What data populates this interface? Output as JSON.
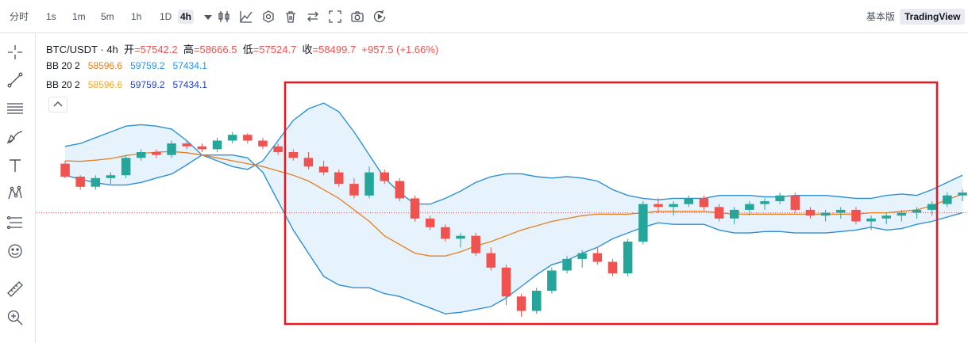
{
  "toolbar": {
    "timeline_label": "分时",
    "intervals": [
      "1s",
      "1m",
      "5m",
      "1h",
      "1D",
      "4h"
    ],
    "active_interval": "4h",
    "basic_label": "基本版",
    "tradingview_label": "TradingView"
  },
  "legend": {
    "symbol": "BTC/USDT · 4h",
    "open_label": "开",
    "open": "=57542.2",
    "high_label": "高",
    "high": "=58666.5",
    "low_label": "低",
    "low": "=57524.7",
    "close_label": "收",
    "close": "=58499.7",
    "change": "+957.5 (+1.66%)",
    "bb1": {
      "name": "BB 20 2",
      "middle": "58596.6",
      "upper": "59759.2",
      "lower": "57434.1"
    },
    "bb2": {
      "name": "BB 20 2",
      "middle": "58596.6",
      "upper": "59759.2",
      "lower": "57434.1"
    }
  },
  "colors": {
    "up": "#26a69a",
    "down": "#ef5350",
    "band_line": "#2f8fd4",
    "band_fill": "#ddeefb",
    "middle_line": "#e67e22",
    "highlight": "#e8161f"
  },
  "chart_data": {
    "type": "candlestick",
    "symbol": "BTC/USDT",
    "interval": "4h",
    "ylim": [
      53000,
      62000
    ],
    "current_price_line": 57100,
    "series": [
      {
        "name": "candles",
        "ohlc": [
          [
            58800,
            58900,
            58300,
            58350
          ],
          [
            58350,
            58400,
            57900,
            58000
          ],
          [
            58000,
            58400,
            57900,
            58300
          ],
          [
            58300,
            58500,
            58100,
            58400
          ],
          [
            58400,
            59100,
            58300,
            59000
          ],
          [
            59000,
            59300,
            58900,
            59200
          ],
          [
            59200,
            59300,
            59000,
            59100
          ],
          [
            59100,
            59600,
            59000,
            59500
          ],
          [
            59500,
            59600,
            59300,
            59400
          ],
          [
            59400,
            59500,
            59200,
            59300
          ],
          [
            59300,
            59700,
            59200,
            59600
          ],
          [
            59600,
            59900,
            59500,
            59800
          ],
          [
            59800,
            59850,
            59500,
            59600
          ],
          [
            59600,
            59700,
            59300,
            59400
          ],
          [
            59400,
            59500,
            59100,
            59200
          ],
          [
            59200,
            59300,
            58900,
            59000
          ],
          [
            59000,
            59200,
            58600,
            58700
          ],
          [
            58700,
            58900,
            58400,
            58500
          ],
          [
            58500,
            58600,
            58000,
            58100
          ],
          [
            58100,
            58300,
            57600,
            57700
          ],
          [
            57700,
            58700,
            57600,
            58500
          ],
          [
            58500,
            58600,
            58100,
            58200
          ],
          [
            58200,
            58300,
            57500,
            57600
          ],
          [
            57600,
            57700,
            56800,
            56900
          ],
          [
            56900,
            57000,
            56500,
            56600
          ],
          [
            56600,
            56700,
            56100,
            56200
          ],
          [
            56200,
            56400,
            55900,
            56300
          ],
          [
            56300,
            56400,
            55600,
            55700
          ],
          [
            55700,
            55900,
            55100,
            55200
          ],
          [
            55200,
            55300,
            53900,
            54200
          ],
          [
            54200,
            54300,
            53500,
            53700
          ],
          [
            53700,
            54500,
            53600,
            54400
          ],
          [
            54400,
            55200,
            54300,
            55100
          ],
          [
            55100,
            55600,
            55000,
            55500
          ],
          [
            55500,
            55800,
            55200,
            55700
          ],
          [
            55700,
            55900,
            55300,
            55400
          ],
          [
            55400,
            55500,
            54900,
            55000
          ],
          [
            55000,
            56200,
            54900,
            56100
          ],
          [
            56100,
            57500,
            56000,
            57400
          ],
          [
            57400,
            57600,
            57100,
            57300
          ],
          [
            57300,
            57500,
            57000,
            57400
          ],
          [
            57400,
            57700,
            57300,
            57600
          ],
          [
            57600,
            57700,
            57200,
            57300
          ],
          [
            57300,
            57400,
            56800,
            56900
          ],
          [
            56900,
            57300,
            56700,
            57200
          ],
          [
            57200,
            57500,
            57000,
            57400
          ],
          [
            57400,
            57600,
            57200,
            57500
          ],
          [
            57500,
            57800,
            57400,
            57700
          ],
          [
            57700,
            57800,
            57100,
            57200
          ],
          [
            57200,
            57300,
            56900,
            57000
          ],
          [
            57000,
            57200,
            56800,
            57100
          ],
          [
            57100,
            57300,
            56900,
            57200
          ],
          [
            57200,
            57300,
            56700,
            56800
          ],
          [
            56800,
            57000,
            56500,
            56900
          ],
          [
            56900,
            57100,
            56700,
            57000
          ],
          [
            57000,
            57200,
            56800,
            57100
          ],
          [
            57100,
            57300,
            56900,
            57200
          ],
          [
            57200,
            57500,
            57000,
            57400
          ],
          [
            57400,
            57800,
            57300,
            57700
          ],
          [
            57700,
            57900,
            57500,
            57800
          ]
        ]
      },
      {
        "name": "bb_upper",
        "values": [
          59400,
          59500,
          59700,
          59900,
          60100,
          60150,
          60100,
          60000,
          59600,
          59100,
          58900,
          58700,
          58600,
          58900,
          59600,
          60300,
          60700,
          60900,
          60600,
          59900,
          59100,
          58300,
          57800,
          57400,
          57400,
          57600,
          57850,
          58150,
          58350,
          58450,
          58450,
          58350,
          58300,
          58350,
          58300,
          58200,
          57900,
          57700,
          57600,
          57550,
          57600,
          57600,
          57600,
          57700,
          57700,
          57700,
          57650,
          57650,
          57700,
          57700,
          57700,
          57650,
          57600,
          57600,
          57700,
          57750,
          57700,
          57900,
          58150,
          58400
        ]
      },
      {
        "name": "bb_middle",
        "values": [
          58900,
          58880,
          58920,
          58980,
          59080,
          59150,
          59200,
          59220,
          59180,
          59100,
          59000,
          58900,
          58800,
          58700,
          58550,
          58400,
          58200,
          57900,
          57600,
          57200,
          56800,
          56300,
          56000,
          55700,
          55600,
          55600,
          55750,
          55950,
          56100,
          56300,
          56500,
          56650,
          56800,
          56900,
          57000,
          57050,
          57050,
          57050,
          57100,
          57150,
          57150,
          57150,
          57150,
          57100,
          57050,
          57050,
          57050,
          57050,
          57050,
          57050,
          57050,
          57050,
          57050,
          57100,
          57100,
          57150,
          57200,
          57350,
          57550,
          57750
        ]
      },
      {
        "name": "bb_lower",
        "values": [
          58400,
          58260,
          58140,
          58060,
          58060,
          58150,
          58300,
          58440,
          58760,
          59100,
          59100,
          59100,
          59000,
          58500,
          57500,
          56500,
          55700,
          54900,
          54600,
          54500,
          54500,
          54300,
          54200,
          54000,
          53800,
          53600,
          53650,
          53750,
          53850,
          54150,
          54550,
          54950,
          55300,
          55450,
          55700,
          55900,
          56200,
          56400,
          56600,
          56750,
          56700,
          56700,
          56700,
          56500,
          56400,
          56400,
          56450,
          56450,
          56400,
          56400,
          56400,
          56450,
          56500,
          56600,
          56500,
          56550,
          56700,
          56800,
          56950,
          57100
        ]
      }
    ]
  }
}
